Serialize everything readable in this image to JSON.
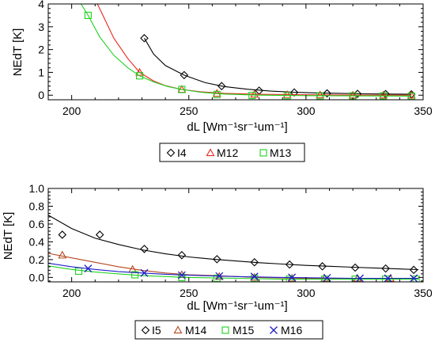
{
  "chart_data": [
    {
      "type": "line",
      "title": "",
      "xlabel": "dL [Wm⁻¹sr⁻¹um⁻¹]",
      "ylabel": "NEdT [K]",
      "xlim": [
        190,
        350
      ],
      "ylim": [
        -0.2,
        4
      ],
      "x_ticks": [
        "200",
        "250",
        "300",
        "350"
      ],
      "y_ticks": [
        "0",
        "1",
        "2",
        "3",
        "4"
      ],
      "grid": false,
      "legend_position": "below",
      "series": [
        {
          "name": "I4",
          "color": "#000000",
          "marker": "diamond",
          "curve": {
            "x": [
              231,
              235,
              240,
              248,
              257,
              265,
              275,
              285,
              295,
              305,
              315,
              325,
              335,
              345
            ],
            "y": [
              2.5,
              1.8,
              1.3,
              0.88,
              0.55,
              0.38,
              0.26,
              0.18,
              0.13,
              0.1,
              0.08,
              0.06,
              0.05,
              0.04
            ]
          },
          "marker_x": [
            231,
            248,
            264,
            280,
            295,
            309,
            322,
            334,
            345
          ],
          "marker_y": [
            2.5,
            0.88,
            0.4,
            0.2,
            0.12,
            0.08,
            0.06,
            0.05,
            0.04
          ]
        },
        {
          "name": "M12",
          "color": "#e8281e",
          "marker": "triangle",
          "curve": {
            "x": [
              211,
              218,
              224,
              229,
              235,
              240,
              247,
              255,
              265,
              280,
              300,
              320,
              345
            ],
            "y": [
              4.0,
              2.5,
              1.6,
              1.0,
              0.62,
              0.42,
              0.25,
              0.15,
              0.08,
              0.04,
              0.02,
              0.01,
              0.0
            ]
          },
          "marker_x": [
            229,
            247,
            262,
            278,
            292,
            306,
            320,
            333,
            345
          ],
          "marker_y": [
            1.0,
            0.25,
            0.08,
            0.04,
            0.02,
            0.01,
            0.0,
            0.0,
            0.0
          ]
        },
        {
          "name": "M13",
          "color": "#1ed21e",
          "marker": "square",
          "curve": {
            "x": [
              204,
              207,
              212,
              218,
              224,
              229,
              235,
              241,
              247,
              255,
              265,
              280,
              300,
              320,
              345
            ],
            "y": [
              4.0,
              3.5,
              2.55,
              1.75,
              1.2,
              0.85,
              0.58,
              0.38,
              0.25,
              0.13,
              0.05,
              0.0,
              -0.02,
              -0.03,
              -0.04
            ]
          },
          "marker_x": [
            207,
            229,
            247,
            262,
            277,
            292,
            306,
            320,
            333,
            345
          ],
          "marker_y": [
            3.5,
            0.85,
            0.25,
            0.03,
            -0.01,
            -0.02,
            -0.03,
            -0.03,
            -0.03,
            -0.04
          ]
        }
      ]
    },
    {
      "type": "line",
      "title": "",
      "xlabel": "dL [Wm⁻¹sr⁻¹um⁻¹]",
      "ylabel": "NEdT [K]",
      "xlim": [
        190,
        350
      ],
      "ylim": [
        -0.05,
        1.0
      ],
      "x_ticks": [
        "200",
        "250",
        "300",
        "350"
      ],
      "y_ticks": [
        "0.0",
        "0.2",
        "0.4",
        "0.6",
        "0.8",
        "1.0"
      ],
      "grid": false,
      "legend_position": "below",
      "series": [
        {
          "name": "I5",
          "color": "#000000",
          "marker": "diamond",
          "curve": {
            "x": [
              190,
              200,
              210,
              220,
              230,
              240,
              250,
              260,
              270,
              280,
              290,
              300,
              310,
              320,
              330,
              340,
              348
            ],
            "y": [
              0.7,
              0.55,
              0.44,
              0.37,
              0.31,
              0.265,
              0.23,
              0.205,
              0.185,
              0.165,
              0.15,
              0.135,
              0.125,
              0.115,
              0.105,
              0.095,
              0.088
            ]
          },
          "marker_x": [
            196,
            212,
            231,
            247,
            262,
            278,
            293,
            307,
            321,
            334,
            346
          ],
          "marker_y": [
            0.48,
            0.48,
            0.32,
            0.25,
            0.205,
            0.17,
            0.145,
            0.125,
            0.11,
            0.1,
            0.085
          ]
        },
        {
          "name": "M14",
          "color": "#b4461e",
          "marker": "triangle",
          "curve": {
            "x": [
              190,
              200,
              210,
              220,
              230,
              240,
              250,
              260,
              280,
              300,
              320,
              348
            ],
            "y": [
              0.27,
              0.22,
              0.17,
              0.12,
              0.08,
              0.05,
              0.03,
              0.02,
              0.0,
              -0.01,
              -0.01,
              -0.01
            ]
          },
          "marker_x": [
            196,
            226,
            247,
            263,
            278,
            294,
            308,
            322,
            336
          ],
          "marker_y": [
            0.25,
            0.09,
            0.03,
            0.01,
            0.0,
            -0.01,
            -0.01,
            -0.01,
            -0.01
          ]
        },
        {
          "name": "M15",
          "color": "#1ed21e",
          "marker": "square",
          "curve": {
            "x": [
              190,
              200,
              210,
              220,
              230,
              240,
              250,
              270,
              290,
              320,
              348
            ],
            "y": [
              0.13,
              0.09,
              0.06,
              0.04,
              0.02,
              0.01,
              0.0,
              -0.01,
              -0.02,
              -0.02,
              -0.02
            ]
          },
          "marker_x": [
            203,
            227,
            247,
            262,
            278,
            293,
            308,
            321,
            334,
            347
          ],
          "marker_y": [
            0.07,
            0.03,
            0.0,
            -0.01,
            -0.01,
            -0.02,
            -0.02,
            -0.02,
            -0.02,
            -0.02
          ]
        },
        {
          "name": "M16",
          "color": "#1e1ec8",
          "marker": "x",
          "curve": {
            "x": [
              190,
              200,
              210,
              220,
              230,
              240,
              250,
              270,
              290,
              320,
              348
            ],
            "y": [
              0.16,
              0.12,
              0.09,
              0.065,
              0.05,
              0.035,
              0.025,
              0.01,
              0.0,
              -0.01,
              -0.01
            ]
          },
          "marker_x": [
            207,
            231,
            247,
            263,
            278,
            294,
            309,
            323,
            335,
            346
          ],
          "marker_y": [
            0.1,
            0.05,
            0.025,
            0.015,
            0.01,
            0.0,
            -0.005,
            -0.01,
            -0.01,
            -0.01
          ]
        }
      ]
    }
  ]
}
